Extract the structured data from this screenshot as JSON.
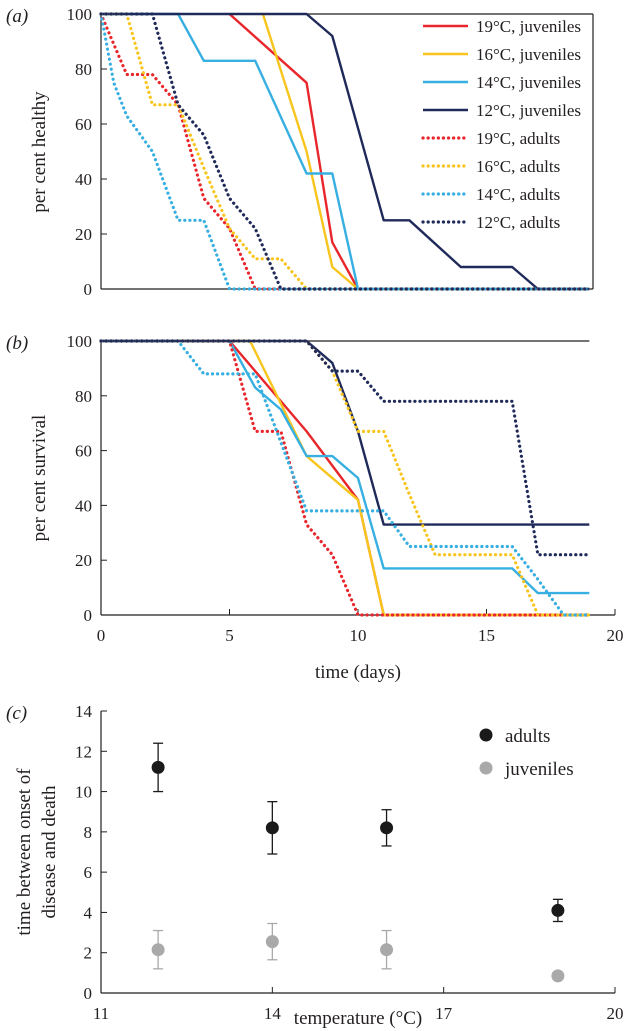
{
  "chart_data": [
    {
      "panel": "(a)",
      "type": "line",
      "ylabel": "per cent healthy",
      "xlabel": "",
      "xlim": [
        0,
        20
      ],
      "ylim": [
        0,
        100
      ],
      "yticks": [
        0,
        20,
        40,
        60,
        80,
        100
      ],
      "legend_position": "top-right",
      "series": [
        {
          "name": "19°C, juveniles",
          "color": "#e8262b",
          "style": "solid",
          "x": [
            5,
            8,
            9,
            10,
            19
          ],
          "y": [
            100,
            75,
            17,
            0,
            0
          ]
        },
        {
          "name": "16°C, juveniles",
          "color": "#f7c51d",
          "style": "solid",
          "x": [
            6.3,
            8,
            9,
            10,
            19
          ],
          "y": [
            100,
            50,
            8,
            0,
            0
          ]
        },
        {
          "name": "14°C, juveniles",
          "color": "#37afe1",
          "style": "solid",
          "x": [
            0,
            3,
            4,
            6,
            8,
            9,
            10,
            19
          ],
          "y": [
            100,
            100,
            83,
            83,
            42,
            42,
            0,
            0
          ]
        },
        {
          "name": "12°C, juveniles",
          "color": "#1f2a5a",
          "style": "solid",
          "x": [
            0,
            8,
            9,
            11,
            12,
            14,
            16,
            17,
            19
          ],
          "y": [
            100,
            100,
            92,
            25,
            25,
            8,
            8,
            0,
            0
          ]
        },
        {
          "name": "19°C, adults",
          "color": "#e8262b",
          "style": "dotted",
          "x": [
            0,
            0.5,
            1,
            2,
            3,
            4,
            5,
            6,
            19
          ],
          "y": [
            100,
            89,
            78,
            78,
            67,
            33,
            22,
            0,
            0
          ]
        },
        {
          "name": "16°C, adults",
          "color": "#f7c51d",
          "style": "dotted",
          "x": [
            0,
            1,
            2,
            3,
            4,
            5,
            6,
            7,
            8,
            19
          ],
          "y": [
            100,
            100,
            67,
            67,
            44,
            22,
            11,
            11,
            0,
            0
          ]
        },
        {
          "name": "14°C, adults",
          "color": "#37afe1",
          "style": "dotted",
          "x": [
            0,
            0.5,
            1,
            2,
            3,
            4,
            5,
            19
          ],
          "y": [
            100,
            75,
            63,
            50,
            25,
            25,
            0,
            0
          ]
        },
        {
          "name": "12°C, adults",
          "color": "#1f2a5a",
          "style": "dotted",
          "x": [
            0,
            2,
            3,
            4,
            5,
            6,
            7,
            19
          ],
          "y": [
            100,
            100,
            67,
            56,
            33,
            22,
            0,
            0
          ]
        }
      ]
    },
    {
      "panel": "(b)",
      "type": "line",
      "ylabel": "per cent survival",
      "xlabel": "time (days)",
      "xlim": [
        0,
        20
      ],
      "ylim": [
        0,
        100
      ],
      "xticks": [
        0,
        5,
        10,
        15,
        20
      ],
      "yticks": [
        0,
        20,
        40,
        60,
        80,
        100
      ],
      "series": [
        {
          "name": "19°C, juveniles",
          "color": "#e8262b",
          "style": "solid",
          "x": [
            0,
            5,
            8,
            10,
            11,
            19
          ],
          "y": [
            100,
            100,
            67,
            42,
            0,
            0
          ]
        },
        {
          "name": "16°C, juveniles",
          "color": "#f7c51d",
          "style": "solid",
          "x": [
            0,
            5.8,
            8,
            10,
            11,
            19
          ],
          "y": [
            100,
            100,
            58,
            42,
            0,
            0
          ]
        },
        {
          "name": "14°C, juveniles",
          "color": "#37afe1",
          "style": "solid",
          "x": [
            0,
            5,
            6,
            7,
            8,
            9,
            10,
            11,
            16,
            17,
            19
          ],
          "y": [
            100,
            100,
            83,
            75,
            58,
            58,
            50,
            17,
            17,
            8,
            8
          ]
        },
        {
          "name": "12°C, juveniles",
          "color": "#1f2a5a",
          "style": "solid",
          "x": [
            0,
            8,
            9,
            10,
            11,
            19
          ],
          "y": [
            100,
            100,
            92,
            67,
            33,
            33
          ]
        },
        {
          "name": "19°C, adults",
          "color": "#e8262b",
          "style": "dotted",
          "x": [
            0,
            5,
            6,
            7,
            8,
            9,
            10,
            19
          ],
          "y": [
            100,
            100,
            67,
            67,
            33,
            22,
            0,
            0
          ]
        },
        {
          "name": "16°C, adults",
          "color": "#f7c51d",
          "style": "dotted",
          "x": [
            0,
            8,
            9,
            10,
            11,
            12,
            13,
            16,
            17,
            19
          ],
          "y": [
            100,
            100,
            89,
            67,
            67,
            44,
            22,
            22,
            0,
            0
          ]
        },
        {
          "name": "14°C, adults",
          "color": "#37afe1",
          "style": "dotted",
          "x": [
            0,
            3,
            4,
            6,
            7,
            8,
            11,
            12,
            16,
            17,
            18,
            19
          ],
          "y": [
            100,
            100,
            88,
            88,
            63,
            38,
            38,
            25,
            25,
            13,
            0,
            0
          ]
        },
        {
          "name": "12°C, adults",
          "color": "#1f2a5a",
          "style": "dotted",
          "x": [
            0,
            8,
            9,
            10,
            11,
            16,
            17,
            19
          ],
          "y": [
            100,
            100,
            89,
            89,
            78,
            78,
            22,
            22
          ]
        }
      ]
    },
    {
      "panel": "(c)",
      "type": "scatter",
      "ylabel": "time between onset of disease and death",
      "ylabel_lines": [
        "time between onset of",
        "disease and death"
      ],
      "xlabel": "temperature (°C)",
      "xlim": [
        11,
        20
      ],
      "ylim": [
        0,
        14
      ],
      "xticks": [
        11,
        14,
        17,
        20
      ],
      "yticks": [
        0,
        2,
        4,
        6,
        8,
        10,
        12,
        14
      ],
      "legend_position": "top-right",
      "series": [
        {
          "name": "adults",
          "color": "#1a1a1a",
          "x": [
            12,
            14,
            16,
            19
          ],
          "y": [
            11.2,
            8.2,
            8.2,
            4.1
          ],
          "err": [
            1.2,
            1.3,
            0.9,
            0.55
          ]
        },
        {
          "name": "juveniles",
          "color": "#a9a9a9",
          "x": [
            12,
            14,
            16,
            19
          ],
          "y": [
            2.15,
            2.55,
            2.15,
            0.85
          ],
          "err": [
            0.95,
            0.9,
            0.95,
            0.15
          ]
        }
      ]
    }
  ]
}
